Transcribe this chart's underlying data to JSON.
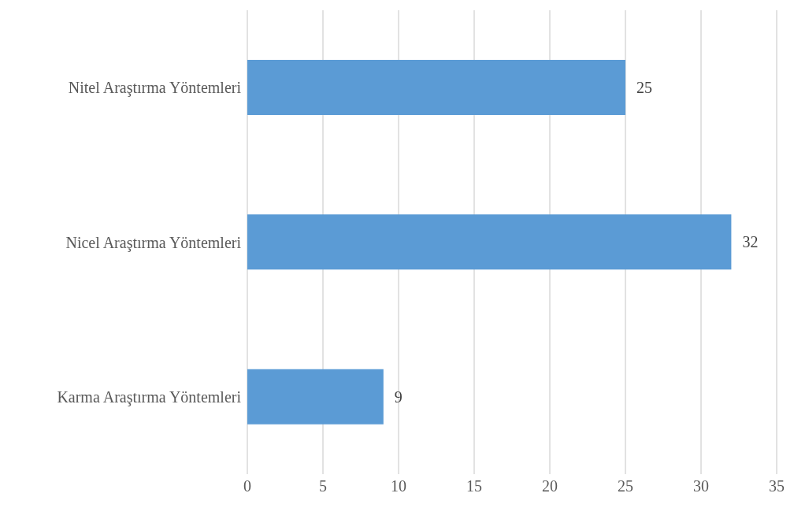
{
  "chart_data": {
    "type": "bar",
    "orientation": "horizontal",
    "categories": [
      "Nitel Araştırma Yöntemleri",
      "Nicel Araştırma Yöntemleri",
      "Karma Araştırma Yöntemleri"
    ],
    "values": [
      25,
      32,
      9
    ],
    "color": "#5b9bd5",
    "xlim": [
      0,
      35
    ],
    "xticks": [
      0,
      5,
      10,
      15,
      20,
      25,
      30,
      35
    ],
    "grid": "x",
    "data_labels": true,
    "legend": false
  }
}
